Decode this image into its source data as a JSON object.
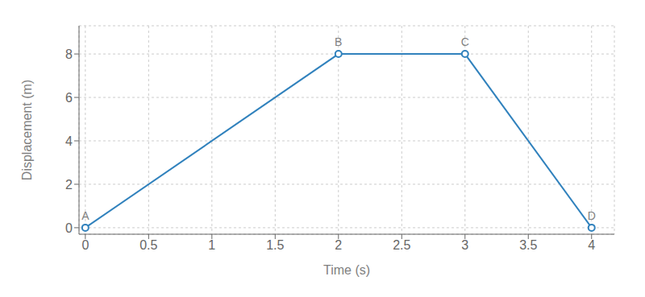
{
  "chart_data": {
    "type": "line",
    "x": [
      0,
      2,
      3,
      4
    ],
    "values": [
      0,
      8,
      8,
      0
    ],
    "xlabel": "Time (s)",
    "ylabel": "Displacement (m)",
    "xlim": [
      -0.05,
      4.18
    ],
    "ylim": [
      -0.3,
      9.3
    ],
    "xticks": [
      0,
      0.5,
      1,
      1.5,
      2,
      2.5,
      3,
      3.5,
      4
    ],
    "yticks": [
      0,
      2,
      4,
      6,
      8
    ],
    "grid": true,
    "marker": "circle",
    "annotations": [
      {
        "text": "A",
        "x": 0,
        "y": 0
      },
      {
        "text": "B",
        "x": 2,
        "y": 8
      },
      {
        "text": "C",
        "x": 3,
        "y": 8
      },
      {
        "text": "D",
        "x": 4,
        "y": 0
      }
    ]
  }
}
